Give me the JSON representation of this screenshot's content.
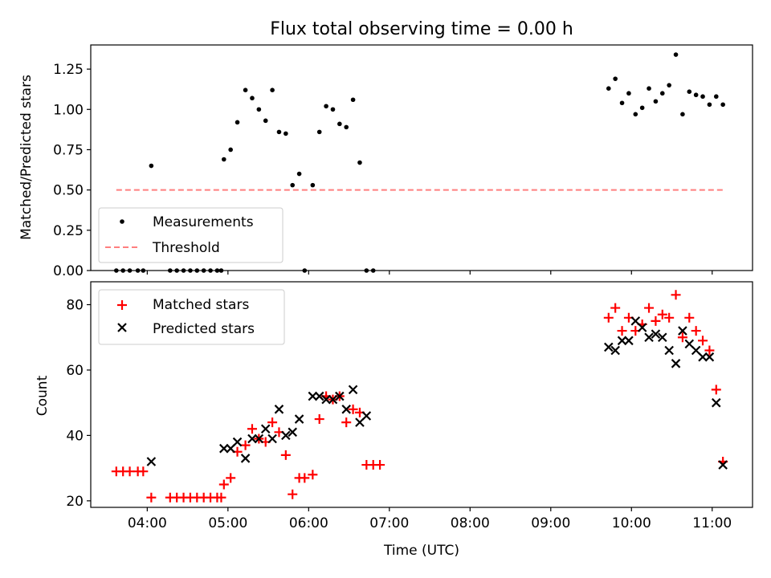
{
  "chart_data": [
    {
      "type": "scatter",
      "title": "Flux total observing time = 0.00 h",
      "xlabel": "",
      "ylabel": "Matched/Predicted stars",
      "xlim": [
        "03:18",
        "11:30"
      ],
      "ylim": [
        0,
        1.4
      ],
      "yticks": [
        0,
        0.25,
        0.5,
        0.75,
        1.0,
        1.25
      ],
      "ytick_labels": [
        "0.00",
        "0.25",
        "0.50",
        "0.75",
        "1.00",
        "1.25"
      ],
      "grid": false,
      "legend_position": "lower-left",
      "series": [
        {
          "name": "Measurements",
          "marker": "dot",
          "color": "#000000",
          "points": [
            [
              "03:37",
              0
            ],
            [
              "03:42",
              0
            ],
            [
              "03:47",
              0
            ],
            [
              "03:53",
              0
            ],
            [
              "03:57",
              0
            ],
            [
              "04:03",
              0.65
            ],
            [
              "04:17",
              0
            ],
            [
              "04:22",
              0
            ],
            [
              "04:27",
              0
            ],
            [
              "04:32",
              0
            ],
            [
              "04:37",
              0
            ],
            [
              "04:42",
              0
            ],
            [
              "04:47",
              0
            ],
            [
              "04:52",
              0
            ],
            [
              "04:55",
              0
            ],
            [
              "04:57",
              0.69
            ],
            [
              "05:02",
              0.75
            ],
            [
              "05:07",
              0.92
            ],
            [
              "05:13",
              1.12
            ],
            [
              "05:18",
              1.07
            ],
            [
              "05:23",
              1.0
            ],
            [
              "05:28",
              0.93
            ],
            [
              "05:33",
              1.12
            ],
            [
              "05:38",
              0.86
            ],
            [
              "05:43",
              0.85
            ],
            [
              "05:48",
              0.53
            ],
            [
              "05:53",
              0.6
            ],
            [
              "05:57",
              0
            ],
            [
              "06:03",
              0.53
            ],
            [
              "06:08",
              0.86
            ],
            [
              "06:13",
              1.02
            ],
            [
              "06:18",
              1.0
            ],
            [
              "06:23",
              0.91
            ],
            [
              "06:28",
              0.89
            ],
            [
              "06:33",
              1.06
            ],
            [
              "06:38",
              0.67
            ],
            [
              "06:43",
              0
            ],
            [
              "06:48",
              0
            ],
            [
              "09:43",
              1.13
            ],
            [
              "09:48",
              1.19
            ],
            [
              "09:53",
              1.04
            ],
            [
              "09:58",
              1.1
            ],
            [
              "10:03",
              0.97
            ],
            [
              "10:08",
              1.01
            ],
            [
              "10:13",
              1.13
            ],
            [
              "10:18",
              1.05
            ],
            [
              "10:23",
              1.1
            ],
            [
              "10:28",
              1.15
            ],
            [
              "10:33",
              1.34
            ],
            [
              "10:38",
              0.97
            ],
            [
              "10:43",
              1.11
            ],
            [
              "10:48",
              1.09
            ],
            [
              "10:53",
              1.08
            ],
            [
              "10:58",
              1.03
            ],
            [
              "11:03",
              1.08
            ],
            [
              "11:08",
              1.03
            ]
          ]
        },
        {
          "name": "Threshold",
          "style": "dashed",
          "color": "#ff7f7f",
          "points": [
            [
              "03:37",
              0.5
            ],
            [
              "11:08",
              0.5
            ]
          ]
        }
      ]
    },
    {
      "type": "scatter",
      "title": "",
      "xlabel": "Time (UTC)",
      "ylabel": "Count",
      "xlim": [
        "03:18",
        "11:30"
      ],
      "ylim": [
        18,
        87
      ],
      "xticks": [
        "04:00",
        "05:00",
        "06:00",
        "07:00",
        "08:00",
        "09:00",
        "10:00",
        "11:00"
      ],
      "yticks": [
        20,
        40,
        60,
        80
      ],
      "grid": false,
      "legend_position": "top-left",
      "series": [
        {
          "name": "Matched stars",
          "marker": "plus",
          "color": "#ff0000",
          "points": [
            [
              "03:37",
              29
            ],
            [
              "03:42",
              29
            ],
            [
              "03:47",
              29
            ],
            [
              "03:53",
              29
            ],
            [
              "03:57",
              29
            ],
            [
              "04:03",
              21
            ],
            [
              "04:17",
              21
            ],
            [
              "04:22",
              21
            ],
            [
              "04:27",
              21
            ],
            [
              "04:32",
              21
            ],
            [
              "04:37",
              21
            ],
            [
              "04:42",
              21
            ],
            [
              "04:47",
              21
            ],
            [
              "04:52",
              21
            ],
            [
              "04:55",
              21
            ],
            [
              "04:57",
              25
            ],
            [
              "05:02",
              27
            ],
            [
              "05:07",
              35
            ],
            [
              "05:13",
              37
            ],
            [
              "05:18",
              42
            ],
            [
              "05:23",
              39
            ],
            [
              "05:28",
              38
            ],
            [
              "05:33",
              44
            ],
            [
              "05:38",
              41
            ],
            [
              "05:43",
              34
            ],
            [
              "05:48",
              22
            ],
            [
              "05:53",
              27
            ],
            [
              "05:57",
              27
            ],
            [
              "06:03",
              28
            ],
            [
              "06:08",
              45
            ],
            [
              "06:13",
              52
            ],
            [
              "06:18",
              51
            ],
            [
              "06:23",
              52
            ],
            [
              "06:28",
              44
            ],
            [
              "06:33",
              48
            ],
            [
              "06:38",
              47
            ],
            [
              "06:43",
              31
            ],
            [
              "06:48",
              31
            ],
            [
              "06:53",
              31
            ],
            [
              "09:43",
              76
            ],
            [
              "09:48",
              79
            ],
            [
              "09:53",
              72
            ],
            [
              "09:58",
              76
            ],
            [
              "10:03",
              72
            ],
            [
              "10:08",
              74
            ],
            [
              "10:13",
              79
            ],
            [
              "10:18",
              75
            ],
            [
              "10:23",
              77
            ],
            [
              "10:28",
              76
            ],
            [
              "10:33",
              83
            ],
            [
              "10:38",
              70
            ],
            [
              "10:43",
              76
            ],
            [
              "10:48",
              72
            ],
            [
              "10:53",
              69
            ],
            [
              "10:58",
              66
            ],
            [
              "11:03",
              54
            ],
            [
              "11:08",
              32
            ]
          ]
        },
        {
          "name": "Predicted stars",
          "marker": "x",
          "color": "#000000",
          "points": [
            [
              "04:03",
              32
            ],
            [
              "04:57",
              36
            ],
            [
              "05:02",
              36
            ],
            [
              "05:07",
              38
            ],
            [
              "05:13",
              33
            ],
            [
              "05:18",
              39
            ],
            [
              "05:23",
              39
            ],
            [
              "05:28",
              42
            ],
            [
              "05:33",
              39
            ],
            [
              "05:38",
              48
            ],
            [
              "05:43",
              40
            ],
            [
              "05:48",
              41
            ],
            [
              "05:53",
              45
            ],
            [
              "06:03",
              52
            ],
            [
              "06:08",
              52
            ],
            [
              "06:13",
              51
            ],
            [
              "06:18",
              51
            ],
            [
              "06:23",
              52
            ],
            [
              "06:28",
              48
            ],
            [
              "06:33",
              54
            ],
            [
              "06:38",
              44
            ],
            [
              "06:43",
              46
            ],
            [
              "09:43",
              67
            ],
            [
              "09:48",
              66
            ],
            [
              "09:53",
              69
            ],
            [
              "09:58",
              69
            ],
            [
              "10:03",
              75
            ],
            [
              "10:08",
              73
            ],
            [
              "10:13",
              70
            ],
            [
              "10:18",
              71
            ],
            [
              "10:23",
              70
            ],
            [
              "10:28",
              66
            ],
            [
              "10:33",
              62
            ],
            [
              "10:38",
              72
            ],
            [
              "10:43",
              68
            ],
            [
              "10:48",
              66
            ],
            [
              "10:53",
              64
            ],
            [
              "10:58",
              64
            ],
            [
              "11:03",
              50
            ],
            [
              "11:08",
              31
            ]
          ]
        }
      ]
    }
  ]
}
